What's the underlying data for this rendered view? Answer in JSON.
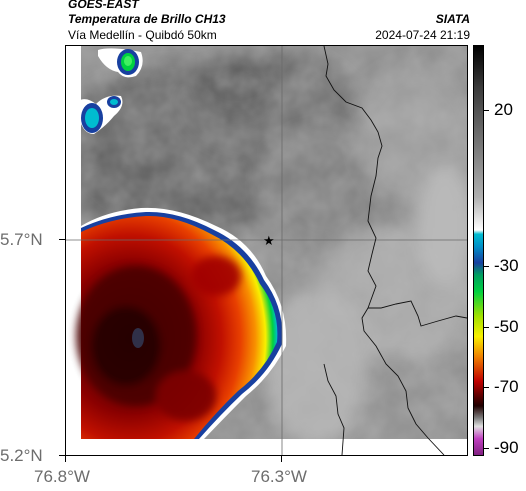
{
  "header": {
    "satellite": "GOES-EAST",
    "product": "Temperatura de Brillo CH13",
    "region": "Vía Medellín - Quibdó 50km",
    "source": "SIATA",
    "datetime": "2024-07-24 21:19"
  },
  "map": {
    "lat_ticks": [
      "5.7°N",
      "5.2°N"
    ],
    "lon_ticks": [
      "76.8°W",
      "76.3°W"
    ],
    "marker": "star-icon"
  },
  "colorbar": {
    "ticks": [
      "20",
      "-30",
      "-50",
      "-70",
      "-90"
    ],
    "colors": {
      "gray_low": "#ffffff",
      "gray_high": "#000000",
      "cyan": "#00bcd0",
      "blue": "#1840a0",
      "green": "#00d040",
      "yellow": "#f8f000",
      "orange": "#f08000",
      "red": "#c00000",
      "dark_red": "#500000",
      "magenta": "#c040c0"
    }
  }
}
